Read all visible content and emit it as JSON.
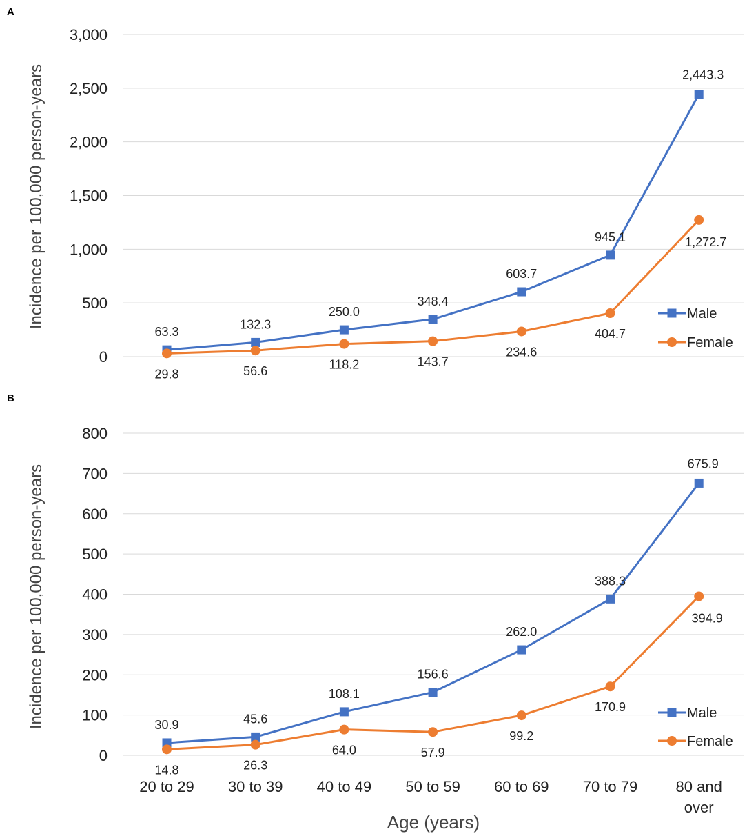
{
  "chart_data": [
    {
      "type": "line",
      "panel_label": "A",
      "categories": [
        "20 to 29",
        "30 to 39",
        "40 to 49",
        "50 to 59",
        "60 to 69",
        "70 to 79",
        "80 and over"
      ],
      "series": [
        {
          "name": "Male",
          "color": "#4472C4",
          "marker": "square",
          "values": [
            63.3,
            132.3,
            250.0,
            348.4,
            603.7,
            945.1,
            2443.3
          ],
          "labels": [
            "63.3",
            "132.3",
            "250.0",
            "348.4",
            "603.7",
            "945.1",
            "2,443.3"
          ]
        },
        {
          "name": "Female",
          "color": "#ED7D31",
          "marker": "circle",
          "values": [
            29.8,
            56.6,
            118.2,
            143.7,
            234.6,
            404.7,
            1272.7
          ],
          "labels": [
            "29.8",
            "56.6",
            "118.2",
            "143.7",
            "234.6",
            "404.7",
            "1,272.7"
          ]
        }
      ],
      "ylabel": "Incidence per 100,000 person-years",
      "xlabel": "",
      "ylim": [
        0,
        3000
      ],
      "yticks": [
        0,
        500,
        1000,
        1500,
        2000,
        2500,
        3000
      ],
      "ytick_labels": [
        "0",
        "500",
        "1,000",
        "1,500",
        "2,000",
        "2,500",
        "3,000"
      ],
      "show_x_tick_labels": false,
      "grid": true,
      "legend_position": "right"
    },
    {
      "type": "line",
      "panel_label": "B",
      "categories": [
        "20 to 29",
        "30 to 39",
        "40 to 49",
        "50 to 59",
        "60 to 69",
        "70 to 79",
        "80 and over"
      ],
      "series": [
        {
          "name": "Male",
          "color": "#4472C4",
          "marker": "square",
          "values": [
            30.9,
            45.6,
            108.1,
            156.6,
            262.0,
            388.3,
            675.9
          ],
          "labels": [
            "30.9",
            "45.6",
            "108.1",
            "156.6",
            "262.0",
            "388.3",
            "675.9"
          ]
        },
        {
          "name": "Female",
          "color": "#ED7D31",
          "marker": "circle",
          "values": [
            14.8,
            26.3,
            64.0,
            57.9,
            99.2,
            170.9,
            394.9
          ],
          "labels": [
            "14.8",
            "26.3",
            "64.0",
            "57.9",
            "99.2",
            "170.9",
            "394.9"
          ]
        }
      ],
      "ylabel": "Incidence per 100,000 person-years",
      "xlabel": "Age (years)",
      "ylim": [
        0,
        800
      ],
      "yticks": [
        0,
        100,
        200,
        300,
        400,
        500,
        600,
        700,
        800
      ],
      "ytick_labels": [
        "0",
        "100",
        "200",
        "300",
        "400",
        "500",
        "600",
        "700",
        "800"
      ],
      "show_x_tick_labels": true,
      "grid": true,
      "legend_position": "right"
    }
  ]
}
